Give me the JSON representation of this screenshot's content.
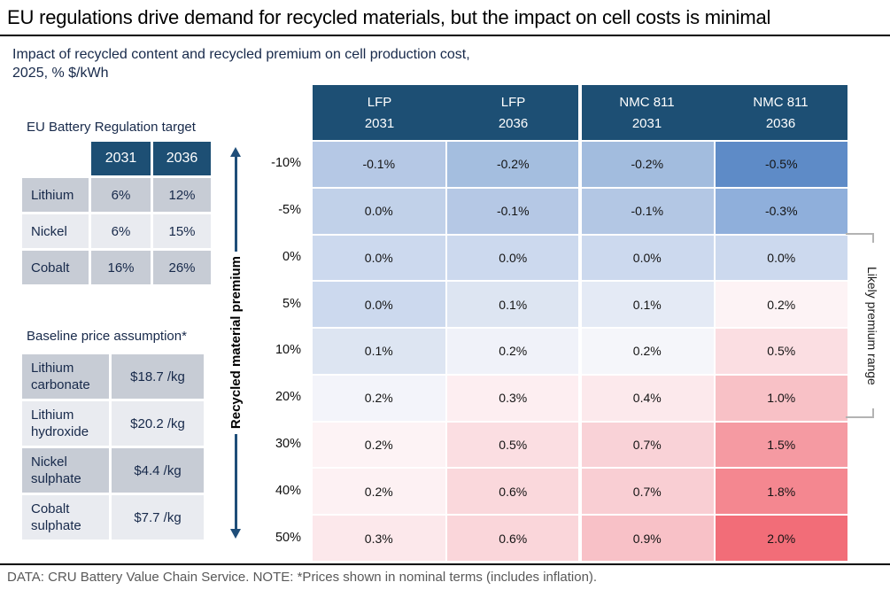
{
  "page": {
    "title": "EU regulations drive demand for recycled materials, but the impact on cell costs is minimal",
    "subtitle_line1": "Impact of recycled content and recycled premium on cell production cost,",
    "subtitle_line2": "2025, % $/kWh",
    "footer": "DATA: CRU Battery Value Chain Service. NOTE: *Prices shown in nominal terms (includes inflation)."
  },
  "regulation_table": {
    "title": "EU Battery Regulation target",
    "col_headers": [
      "2031",
      "2036"
    ],
    "rows": [
      {
        "label": "Lithium",
        "y2031": "6%",
        "y2036": "12%"
      },
      {
        "label": "Nickel",
        "y2031": "6%",
        "y2036": "15%"
      },
      {
        "label": "Cobalt",
        "y2031": "16%",
        "y2036": "26%"
      }
    ]
  },
  "baseline_table": {
    "title": "Baseline price assumption*",
    "rows": [
      {
        "label": "Lithium carbonate",
        "value": "$18.7 /kg"
      },
      {
        "label": "Lithium hydroxide",
        "value": "$20.2 /kg"
      },
      {
        "label": "Nickel sulphate",
        "value": "$4.4 /kg"
      },
      {
        "label": "Cobalt sulphate",
        "value": "$7.7 /kg"
      }
    ]
  },
  "heatmap": {
    "axis_label": "Recycled material premium",
    "bracket_label": "Likely premium range",
    "col_headers": [
      {
        "line1": "LFP",
        "line2": "2031"
      },
      {
        "line1": "LFP",
        "line2": "2036"
      },
      {
        "line1": "NMC 811",
        "line2": "2031"
      },
      {
        "line1": "NMC 811",
        "line2": "2036"
      }
    ],
    "row_labels": [
      "-10%",
      "-5%",
      "0%",
      "5%",
      "10%",
      "20%",
      "30%",
      "40%",
      "50%"
    ],
    "cells": [
      [
        "-0.1%",
        "-0.2%",
        "-0.2%",
        "-0.5%"
      ],
      [
        "0.0%",
        "-0.1%",
        "-0.1%",
        "-0.3%"
      ],
      [
        "0.0%",
        "0.0%",
        "0.0%",
        "0.0%"
      ],
      [
        "0.0%",
        "0.1%",
        "0.1%",
        "0.2%"
      ],
      [
        "0.1%",
        "0.2%",
        "0.2%",
        "0.5%"
      ],
      [
        "0.2%",
        "0.3%",
        "0.4%",
        "1.0%"
      ],
      [
        "0.2%",
        "0.5%",
        "0.7%",
        "1.5%"
      ],
      [
        "0.2%",
        "0.6%",
        "0.7%",
        "1.8%"
      ],
      [
        "0.3%",
        "0.6%",
        "0.9%",
        "2.0%"
      ]
    ],
    "colors": [
      [
        "#b5c8e5",
        "#a4bedf",
        "#a2bcde",
        "#5e8bc7"
      ],
      [
        "#c1d1e9",
        "#b5c8e5",
        "#b3c7e4",
        "#8fafdb"
      ],
      [
        "#ccd9ee",
        "#ccd9ee",
        "#ccd9ee",
        "#ccd9ee"
      ],
      [
        "#ccd9ee",
        "#dde5f2",
        "#e4eaf5",
        "#fdf3f5"
      ],
      [
        "#dde5f2",
        "#f0f2f9",
        "#f5f6fa",
        "#fbdee2"
      ],
      [
        "#f3f4fa",
        "#fdeef1",
        "#fce9ec",
        "#f8c1c6"
      ],
      [
        "#fdf3f5",
        "#fbdee2",
        "#f9d2d7",
        "#f59aa2"
      ],
      [
        "#fdf1f3",
        "#fad8dc",
        "#f9ced3",
        "#f48790"
      ],
      [
        "#fce8eb",
        "#fad6da",
        "#f8c1c7",
        "#f26d78"
      ]
    ]
  },
  "colors": {
    "header_blue": "#1d4f74",
    "table_row_dark": "#c7ccd5",
    "table_row_light": "#e9ebf0",
    "axis_arrow_blue": "#1f4e79",
    "bracket_gray": "#b3b3b3",
    "subtitle_navy": "#17294a",
    "footer_gray": "#595959",
    "heatmap_negative_blue": "#5e8bc7",
    "heatmap_positive_red": "#f26d78"
  },
  "chart_data": {
    "type": "heatmap",
    "title": "Impact of recycled content and recycled premium on cell production cost, 2025, % $/kWh",
    "columns": [
      "LFP 2031",
      "LFP 2036",
      "NMC 811 2031",
      "NMC 811 2036"
    ],
    "rows": [
      "-10%",
      "-5%",
      "0%",
      "5%",
      "10%",
      "20%",
      "30%",
      "40%",
      "50%"
    ],
    "ylabel": "Recycled material premium",
    "values_pct": [
      [
        -0.1,
        -0.2,
        -0.2,
        -0.5
      ],
      [
        0.0,
        -0.1,
        -0.1,
        -0.3
      ],
      [
        0.0,
        0.0,
        0.0,
        0.0
      ],
      [
        0.0,
        0.1,
        0.1,
        0.2
      ],
      [
        0.1,
        0.2,
        0.2,
        0.5
      ],
      [
        0.2,
        0.3,
        0.4,
        1.0
      ],
      [
        0.2,
        0.5,
        0.7,
        1.5
      ],
      [
        0.2,
        0.6,
        0.7,
        1.8
      ],
      [
        0.3,
        0.6,
        0.9,
        2.0
      ]
    ],
    "annotation": "Likely premium range bracket spans premium rows 0% through 20%",
    "colormap": "diverging: blue for negative impact, white near zero, red for positive impact",
    "legend_position": "none",
    "grid": "white cell separators"
  }
}
